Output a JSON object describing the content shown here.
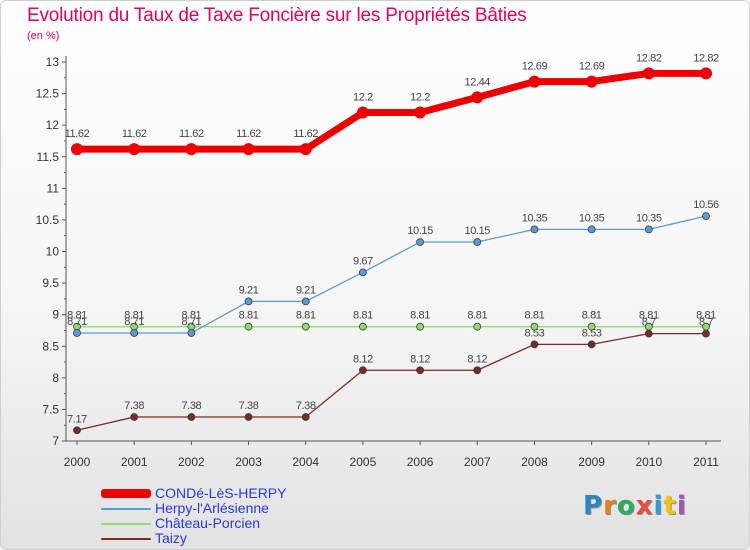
{
  "header": {
    "title": "Evolution du Taux de Taxe Foncière sur les Propriétés Bâties",
    "subtitle": "(en %)"
  },
  "logo": {
    "text": "Proxiti",
    "colors": [
      "#2e86c1",
      "#e67e22",
      "#27ae60",
      "#e74c3c",
      "#3498db",
      "#f1c40f",
      "#9b59b6"
    ]
  },
  "chart_data": {
    "type": "line",
    "title": "Evolution du Taux de Taxe Foncière sur les Propriétés Bâties",
    "subtitle": "(en %)",
    "xlabel": "",
    "ylabel": "",
    "x": [
      "2000",
      "2001",
      "2002",
      "2003",
      "2004",
      "2005",
      "2006",
      "2007",
      "2008",
      "2009",
      "2010",
      "2011"
    ],
    "ylim": [
      7,
      13
    ],
    "yticks": [
      "7",
      "7.5",
      "8",
      "8.5",
      "9",
      "9.5",
      "10",
      "10.5",
      "11",
      "11.5",
      "12",
      "12.5",
      "13"
    ],
    "grid": false,
    "legend_position": "bottom-left",
    "series": [
      {
        "name": "CONDé-LèS-HERPY",
        "color": "#ee0000",
        "values": [
          11.62,
          11.62,
          11.62,
          11.62,
          11.62,
          12.2,
          12.2,
          12.44,
          12.69,
          12.69,
          12.82,
          12.82
        ],
        "labels": [
          "11.62",
          "11.62",
          "11.62",
          "11.62",
          "11.62",
          "12.2",
          "12.2",
          "12.44",
          "12.69",
          "12.69",
          "12.82",
          "12.82"
        ]
      },
      {
        "name": "Herpy-l'Arlésienne",
        "color": "#5b9bd5",
        "values": [
          8.71,
          8.71,
          8.71,
          9.21,
          9.21,
          9.67,
          10.15,
          10.15,
          10.35,
          10.35,
          10.35,
          10.56
        ],
        "labels": [
          "8.71",
          "8.71",
          "8.71",
          "9.21",
          "9.21",
          "9.67",
          "10.15",
          "10.15",
          "10.35",
          "10.35",
          "10.35",
          "10.56"
        ]
      },
      {
        "name": "Château-Porcien",
        "color": "#8fdb6e",
        "values": [
          8.81,
          8.81,
          8.81,
          8.81,
          8.81,
          8.81,
          8.81,
          8.81,
          8.81,
          8.81,
          8.81,
          8.81
        ],
        "labels": [
          "8.81",
          "8.81",
          "8.81",
          "8.81",
          "8.81",
          "8.81",
          "8.81",
          "8.81",
          "8.81",
          "8.81",
          "8.81",
          "8.81"
        ]
      },
      {
        "name": "Taizy",
        "color": "#7a2a2a",
        "values": [
          7.17,
          7.38,
          7.38,
          7.38,
          7.38,
          8.12,
          8.12,
          8.12,
          8.53,
          8.53,
          8.7,
          8.7
        ],
        "labels": [
          "7.17",
          "7.38",
          "7.38",
          "7.38",
          "7.38",
          "8.12",
          "8.12",
          "8.12",
          "8.53",
          "8.53",
          "8.7",
          "8.7"
        ]
      }
    ]
  }
}
